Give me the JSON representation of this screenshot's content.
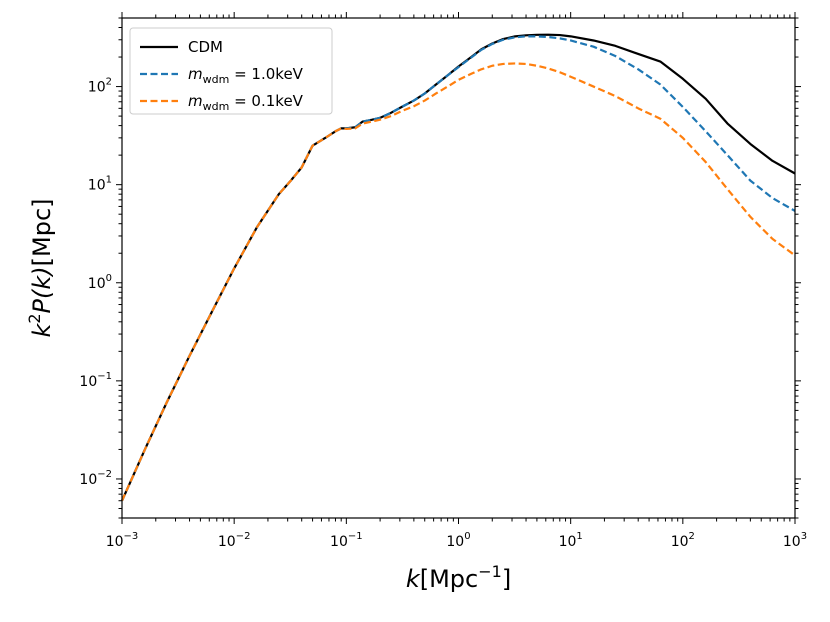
{
  "chart_data": {
    "type": "line",
    "title": "",
    "xscale": "log",
    "yscale": "log",
    "xlim": [
      0.001,
      1000
    ],
    "ylim": [
      0.004,
      500
    ],
    "xlabel": {
      "base": "k",
      "unit": "[Mpc",
      "exp": "−1",
      "close": "]"
    },
    "ylabel": {
      "base": "k",
      "sup": "2",
      "func": "P(k)",
      "unit": "[Mpc]"
    },
    "x_ticks": [
      {
        "value": 0.001,
        "base": "10",
        "exp": "−3"
      },
      {
        "value": 0.01,
        "base": "10",
        "exp": "−2"
      },
      {
        "value": 0.1,
        "base": "10",
        "exp": "−1"
      },
      {
        "value": 1,
        "base": "10",
        "exp": "0"
      },
      {
        "value": 10,
        "base": "10",
        "exp": "1"
      },
      {
        "value": 100,
        "base": "10",
        "exp": "2"
      },
      {
        "value": 1000,
        "base": "10",
        "exp": "3"
      }
    ],
    "y_ticks": [
      {
        "value": 0.01,
        "base": "10",
        "exp": "−2"
      },
      {
        "value": 0.1,
        "base": "10",
        "exp": "−1"
      },
      {
        "value": 1,
        "base": "10",
        "exp": "0"
      },
      {
        "value": 10,
        "base": "10",
        "exp": "1"
      },
      {
        "value": 100,
        "base": "10",
        "exp": "2"
      }
    ],
    "legend_position": "top-left",
    "series": [
      {
        "name": "CDM",
        "label": {
          "text": "CDM"
        },
        "color": "#000000",
        "dash": "solid",
        "x": [
          0.001,
          0.0016,
          0.0025,
          0.004,
          0.0063,
          0.01,
          0.016,
          0.025,
          0.032,
          0.04,
          0.05,
          0.065,
          0.08,
          0.09,
          0.1,
          0.12,
          0.14,
          0.17,
          0.2,
          0.25,
          0.32,
          0.4,
          0.5,
          0.63,
          0.8,
          1.0,
          1.3,
          1.6,
          2.0,
          2.5,
          3.2,
          4.0,
          5.0,
          6.3,
          8.0,
          10,
          16,
          25,
          40,
          63,
          100,
          160,
          250,
          400,
          630,
          1000
        ],
        "y": [
          0.006,
          0.02,
          0.06,
          0.18,
          0.5,
          1.4,
          3.7,
          8.0,
          11.0,
          15.0,
          25.0,
          30.0,
          35.0,
          37.5,
          37.5,
          38.5,
          44.0,
          46.0,
          48.0,
          54.0,
          63.0,
          72.0,
          85.0,
          105.0,
          130.0,
          160.0,
          200.0,
          240.0,
          275.0,
          305.0,
          325.0,
          333.0,
          337.0,
          338.0,
          335.0,
          325.0,
          295.0,
          260.0,
          215.0,
          180.0,
          120.0,
          75.0,
          42.0,
          26.0,
          17.5,
          13.0
        ]
      },
      {
        "name": "m_wdm = 1.0keV",
        "label": {
          "m": "m",
          "sub": "wdm",
          "rest": " = 1.0keV"
        },
        "color": "#1f77b4",
        "dash": "dashed",
        "x": [
          0.001,
          0.0016,
          0.0025,
          0.004,
          0.0063,
          0.01,
          0.016,
          0.025,
          0.032,
          0.04,
          0.05,
          0.065,
          0.08,
          0.09,
          0.1,
          0.12,
          0.14,
          0.17,
          0.2,
          0.25,
          0.32,
          0.4,
          0.5,
          0.63,
          0.8,
          1.0,
          1.3,
          1.6,
          2.0,
          2.5,
          3.2,
          4.0,
          5.0,
          6.3,
          8.0,
          10,
          16,
          25,
          40,
          63,
          100,
          160,
          250,
          400,
          630,
          1000
        ],
        "y": [
          0.006,
          0.02,
          0.06,
          0.18,
          0.5,
          1.4,
          3.7,
          8.0,
          11.0,
          15.0,
          25.0,
          30.0,
          35.0,
          37.5,
          37.5,
          38.5,
          44.0,
          46.0,
          48.0,
          54.0,
          63.0,
          72.0,
          85.0,
          105.0,
          130.0,
          158.0,
          198.0,
          237.0,
          272.0,
          300.0,
          318.0,
          325.0,
          325.0,
          320.0,
          310.0,
          295.0,
          255.0,
          205.0,
          150.0,
          105.0,
          62.0,
          35.0,
          20.0,
          11.0,
          7.3,
          5.4
        ]
      },
      {
        "name": "m_wdm = 0.1keV",
        "label": {
          "m": "m",
          "sub": "wdm",
          "rest": " = 0.1keV"
        },
        "color": "#ff7f0e",
        "dash": "dashed",
        "x": [
          0.001,
          0.0016,
          0.0025,
          0.004,
          0.0063,
          0.01,
          0.016,
          0.025,
          0.032,
          0.04,
          0.05,
          0.065,
          0.08,
          0.09,
          0.1,
          0.12,
          0.14,
          0.17,
          0.2,
          0.25,
          0.32,
          0.4,
          0.5,
          0.63,
          0.8,
          1.0,
          1.3,
          1.6,
          2.0,
          2.5,
          3.2,
          4.0,
          5.0,
          6.3,
          8.0,
          10,
          16,
          25,
          40,
          63,
          100,
          160,
          250,
          400,
          630,
          1000
        ],
        "y": [
          0.006,
          0.02,
          0.06,
          0.18,
          0.5,
          1.4,
          3.7,
          8.0,
          11.0,
          15.0,
          25.0,
          30.0,
          35.0,
          37.5,
          37.0,
          37.5,
          42.0,
          44.0,
          46.0,
          50.0,
          57.0,
          63.0,
          72.0,
          85.0,
          100.0,
          117.0,
          135.0,
          150.0,
          163.0,
          170.0,
          172.0,
          170.0,
          163.0,
          153.0,
          140.0,
          126.0,
          100.0,
          80.0,
          60.0,
          47.0,
          30.0,
          17.0,
          9.0,
          4.7,
          2.8,
          1.9
        ]
      }
    ]
  }
}
